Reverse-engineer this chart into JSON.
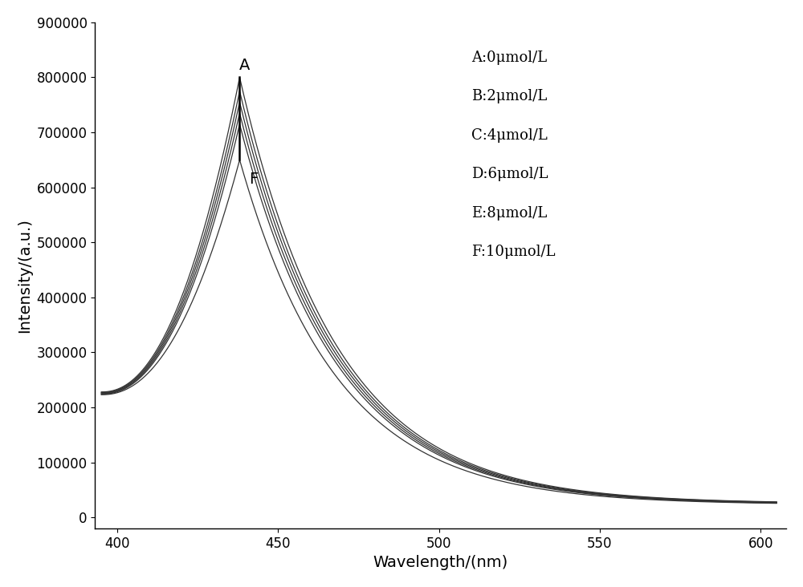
{
  "xlabel": "Wavelength/(nm)",
  "ylabel": "Intensity/(a.u.)",
  "xlim": [
    393,
    608
  ],
  "ylim": [
    -20000,
    900000
  ],
  "yticks": [
    0,
    100000,
    200000,
    300000,
    400000,
    500000,
    600000,
    700000,
    800000,
    900000
  ],
  "xticks": [
    400,
    450,
    500,
    550,
    600
  ],
  "x_start": 395,
  "x_end": 605,
  "peak_wavelength": 438,
  "peak_intensities": [
    800000,
    775000,
    755000,
    735000,
    715000,
    650000
  ],
  "start_intensities": [
    228000,
    227000,
    226000,
    225000,
    224000,
    223000
  ],
  "end_intensities": [
    25000,
    24600,
    24200,
    23800,
    23400,
    23000
  ],
  "legend_labels": [
    "A:0μmol/L",
    "B:2μmol/L",
    "C:4μmol/L",
    "D:6μmol/L",
    "E:8μmol/L",
    "F:10μmol/L"
  ],
  "annotation_A": "A",
  "annotation_F": "F",
  "line_color": "#333333",
  "background_color": "#ffffff",
  "font_size_labels": 14,
  "font_size_ticks": 12,
  "font_size_legend": 13,
  "font_size_annotation": 14,
  "decay_rate": 5.5,
  "rise_power": 2.2
}
